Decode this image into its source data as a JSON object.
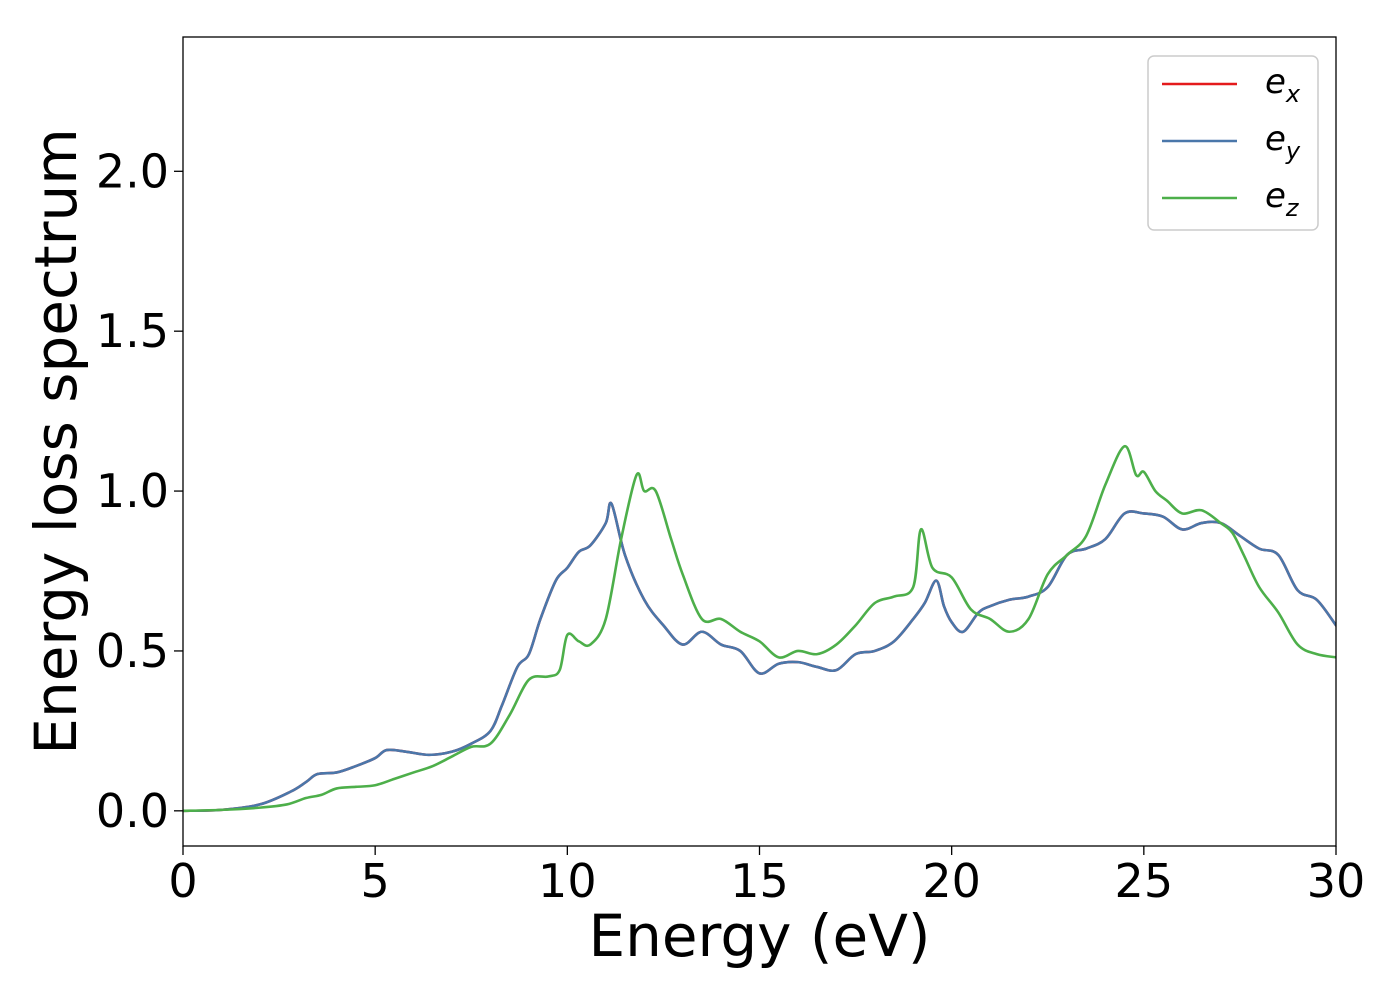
{
  "chart_data": {
    "type": "line",
    "xlabel": "Energy (eV)",
    "ylabel": "Energy loss spectrum",
    "xlim": [
      0,
      30
    ],
    "ylim": [
      -0.11,
      2.42
    ],
    "xticks": [
      0,
      5,
      10,
      15,
      20,
      25,
      30
    ],
    "xtick_labels": [
      "0",
      "5",
      "10",
      "15",
      "20",
      "25",
      "30"
    ],
    "yticks": [
      0.0,
      0.5,
      1.0,
      1.5,
      2.0
    ],
    "ytick_labels": [
      "0.0",
      "0.5",
      "1.0",
      "1.5",
      "2.0"
    ],
    "grid": false,
    "legend_position": "top-right",
    "series": [
      {
        "name": "e_x",
        "label_base": "e",
        "label_sub": "x",
        "color": "#e41a1c",
        "x": [
          0,
          1,
          2,
          2.8,
          3.2,
          3.5,
          4,
          4.5,
          5,
          5.3,
          5.8,
          6.4,
          7,
          7.5,
          8,
          8.3,
          8.7,
          9,
          9.3,
          9.7,
          10,
          10.3,
          10.6,
          11,
          11.15,
          11.5,
          12,
          12.5,
          13,
          13.5,
          14,
          14.5,
          15,
          15.5,
          16,
          16.5,
          17,
          17.5,
          18,
          18.5,
          19,
          19.3,
          19.6,
          19.8,
          20,
          20.3,
          20.7,
          21,
          21.5,
          22,
          22.5,
          23,
          23.5,
          24,
          24.5,
          25,
          25.5,
          26,
          26.5,
          27,
          27.5,
          28,
          28.5,
          29,
          29.5,
          30
        ],
        "y": [
          0,
          0.003,
          0.02,
          0.06,
          0.09,
          0.115,
          0.12,
          0.14,
          0.165,
          0.19,
          0.185,
          0.175,
          0.185,
          0.21,
          0.25,
          0.33,
          0.45,
          0.49,
          0.6,
          0.72,
          0.76,
          0.81,
          0.83,
          0.9,
          0.96,
          0.8,
          0.66,
          0.58,
          0.52,
          0.56,
          0.52,
          0.5,
          0.43,
          0.46,
          0.465,
          0.45,
          0.44,
          0.49,
          0.5,
          0.53,
          0.6,
          0.65,
          0.72,
          0.64,
          0.59,
          0.56,
          0.62,
          0.64,
          0.66,
          0.67,
          0.7,
          0.8,
          0.82,
          0.85,
          0.93,
          0.93,
          0.92,
          0.88,
          0.9,
          0.9,
          0.86,
          0.82,
          0.8,
          0.69,
          0.66,
          0.58
        ]
      },
      {
        "name": "e_y",
        "label_base": "e",
        "label_sub": "y",
        "color": "#4a77aa",
        "x": [
          0,
          1,
          2,
          2.8,
          3.2,
          3.5,
          4,
          4.5,
          5,
          5.3,
          5.8,
          6.4,
          7,
          7.5,
          8,
          8.3,
          8.7,
          9,
          9.3,
          9.7,
          10,
          10.3,
          10.6,
          11,
          11.15,
          11.5,
          12,
          12.5,
          13,
          13.5,
          14,
          14.5,
          15,
          15.5,
          16,
          16.5,
          17,
          17.5,
          18,
          18.5,
          19,
          19.3,
          19.6,
          19.8,
          20,
          20.3,
          20.7,
          21,
          21.5,
          22,
          22.5,
          23,
          23.5,
          24,
          24.5,
          25,
          25.5,
          26,
          26.5,
          27,
          27.5,
          28,
          28.5,
          29,
          29.5,
          30
        ],
        "y": [
          0,
          0.003,
          0.02,
          0.06,
          0.09,
          0.115,
          0.12,
          0.14,
          0.165,
          0.19,
          0.185,
          0.175,
          0.185,
          0.21,
          0.25,
          0.33,
          0.45,
          0.49,
          0.6,
          0.72,
          0.76,
          0.81,
          0.83,
          0.9,
          0.96,
          0.8,
          0.66,
          0.58,
          0.52,
          0.56,
          0.52,
          0.5,
          0.43,
          0.46,
          0.465,
          0.45,
          0.44,
          0.49,
          0.5,
          0.53,
          0.6,
          0.65,
          0.72,
          0.64,
          0.59,
          0.56,
          0.62,
          0.64,
          0.66,
          0.67,
          0.7,
          0.8,
          0.82,
          0.85,
          0.93,
          0.93,
          0.92,
          0.88,
          0.9,
          0.9,
          0.86,
          0.82,
          0.8,
          0.69,
          0.66,
          0.58
        ]
      },
      {
        "name": "e_z",
        "label_base": "e",
        "label_sub": "z",
        "color": "#4daf4a",
        "x": [
          0,
          1,
          2,
          2.7,
          3.2,
          3.6,
          4,
          4.5,
          5,
          5.5,
          6,
          6.5,
          7,
          7.5,
          8,
          8.5,
          9,
          9.5,
          9.8,
          10,
          10.3,
          10.6,
          11,
          11.4,
          11.8,
          12,
          12.3,
          12.7,
          13,
          13.5,
          14,
          14.5,
          15,
          15.5,
          16,
          16.5,
          17,
          17.5,
          18,
          18.5,
          19,
          19.2,
          19.5,
          20,
          20.5,
          21,
          21.5,
          22,
          22.5,
          23,
          23.5,
          24,
          24.5,
          24.8,
          25,
          25.3,
          25.6,
          26,
          26.5,
          27,
          27.3,
          27.6,
          28,
          28.5,
          29,
          29.5,
          30
        ],
        "y": [
          0,
          0.003,
          0.01,
          0.02,
          0.04,
          0.05,
          0.07,
          0.075,
          0.08,
          0.1,
          0.12,
          0.14,
          0.17,
          0.2,
          0.21,
          0.3,
          0.41,
          0.42,
          0.44,
          0.55,
          0.53,
          0.52,
          0.6,
          0.85,
          1.05,
          1.0,
          1.0,
          0.85,
          0.74,
          0.6,
          0.6,
          0.56,
          0.53,
          0.48,
          0.5,
          0.49,
          0.52,
          0.58,
          0.65,
          0.67,
          0.7,
          0.88,
          0.76,
          0.73,
          0.63,
          0.6,
          0.56,
          0.6,
          0.74,
          0.8,
          0.86,
          1.02,
          1.14,
          1.05,
          1.06,
          1.0,
          0.97,
          0.93,
          0.94,
          0.9,
          0.87,
          0.8,
          0.7,
          0.62,
          0.52,
          0.49,
          0.48
        ]
      }
    ]
  }
}
